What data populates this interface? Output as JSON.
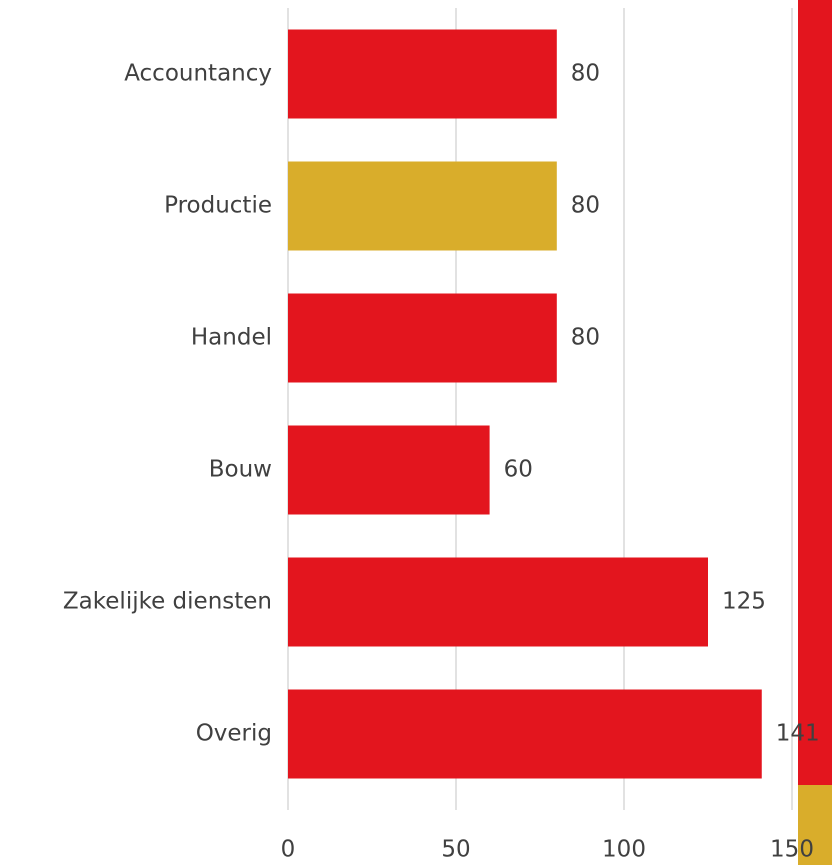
{
  "chart_data": {
    "type": "bar",
    "orientation": "horizontal",
    "categories": [
      "Accountancy",
      "Productie",
      "Handel",
      "Bouw",
      "Zakelijke diensten",
      "Overig"
    ],
    "values": [
      80,
      80,
      80,
      60,
      125,
      141
    ],
    "colors": [
      "#e3151e",
      "#d9ad2b",
      "#e3151e",
      "#e3151e",
      "#e3151e",
      "#e3151e"
    ],
    "xlim": [
      0,
      150
    ],
    "xticks": [
      0,
      50,
      100,
      150
    ],
    "grid": true
  }
}
